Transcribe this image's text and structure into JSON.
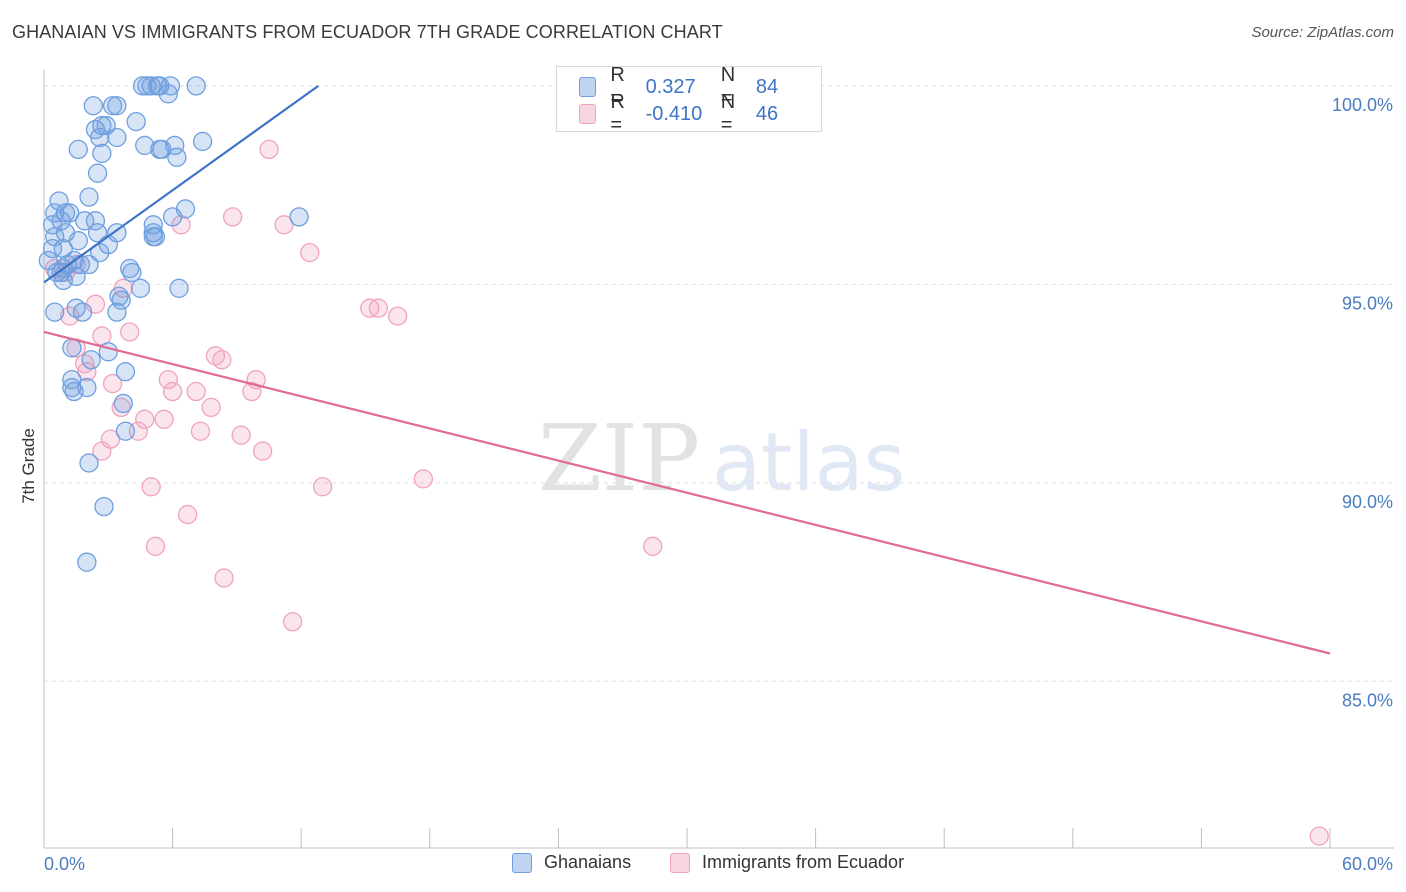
{
  "header": {
    "title": "GHANAIAN VS IMMIGRANTS FROM ECUADOR 7TH GRADE CORRELATION CHART",
    "source": "Source: ZipAtlas.com"
  },
  "watermark": {
    "zip": "ZIP",
    "atlas": "atlas"
  },
  "legend": {
    "rows": [
      {
        "r_label": "R =",
        "r_value": "0.327",
        "n_label": "N =",
        "n_value": "84",
        "color": "#6e9fe0"
      },
      {
        "r_label": "R =",
        "r_value": "-0.410",
        "n_label": "N =",
        "n_value": "46",
        "color": "#f0a3bd"
      }
    ]
  },
  "bottom_legend": [
    {
      "label": "Ghanaians",
      "color": "#6e9fe0"
    },
    {
      "label": "Immigrants from Ecuador",
      "color": "#f0a3bd"
    }
  ],
  "chart_data": {
    "type": "scatter",
    "title": "GHANAIAN VS IMMIGRANTS FROM ECUADOR 7TH GRADE CORRELATION CHART",
    "xlabel": "",
    "ylabel": "7th Grade",
    "xlim": [
      0,
      60
    ],
    "ylim": [
      80.8,
      100.4
    ],
    "x_tick_labels": [
      "0.0%",
      "60.0%"
    ],
    "y_ticks": [
      85.0,
      90.0,
      95.0,
      100.0
    ],
    "y_tick_labels": [
      "85.0%",
      "90.0%",
      "95.0%",
      "100.0%"
    ],
    "grid": true,
    "series": [
      {
        "name": "Ghanaians",
        "color": "#6e9fe0",
        "trend": {
          "x": [
            0.0,
            12.8
          ],
          "y": [
            95.05,
            100.0
          ]
        },
        "points": [
          [
            5.0,
            100.0
          ],
          [
            5.4,
            100.0
          ],
          [
            4.6,
            100.0
          ],
          [
            4.8,
            100.0
          ],
          [
            7.1,
            100.0
          ],
          [
            5.9,
            100.0
          ],
          [
            5.3,
            100.0
          ],
          [
            5.8,
            99.8
          ],
          [
            3.4,
            99.5
          ],
          [
            3.2,
            99.5
          ],
          [
            2.3,
            99.5
          ],
          [
            4.3,
            99.1
          ],
          [
            2.7,
            99.0
          ],
          [
            2.4,
            98.9
          ],
          [
            2.6,
            98.7
          ],
          [
            3.4,
            98.7
          ],
          [
            4.7,
            98.5
          ],
          [
            6.1,
            98.5
          ],
          [
            7.4,
            98.6
          ],
          [
            5.4,
            98.4
          ],
          [
            5.5,
            98.4
          ],
          [
            1.6,
            98.4
          ],
          [
            2.7,
            98.3
          ],
          [
            6.2,
            98.2
          ],
          [
            2.5,
            97.8
          ],
          [
            2.1,
            97.2
          ],
          [
            0.7,
            97.1
          ],
          [
            6.6,
            96.9
          ],
          [
            11.9,
            96.7
          ],
          [
            0.5,
            96.8
          ],
          [
            1.0,
            96.8
          ],
          [
            1.2,
            96.8
          ],
          [
            6.0,
            96.7
          ],
          [
            2.4,
            96.6
          ],
          [
            0.4,
            96.5
          ],
          [
            0.8,
            96.6
          ],
          [
            5.1,
            96.5
          ],
          [
            5.1,
            96.3
          ],
          [
            2.5,
            96.3
          ],
          [
            3.4,
            96.3
          ],
          [
            1.0,
            96.3
          ],
          [
            5.1,
            96.2
          ],
          [
            5.2,
            96.2
          ],
          [
            0.5,
            96.2
          ],
          [
            1.6,
            96.1
          ],
          [
            3.0,
            96.0
          ],
          [
            0.4,
            95.9
          ],
          [
            0.9,
            95.9
          ],
          [
            2.6,
            95.8
          ],
          [
            0.2,
            95.6
          ],
          [
            1.1,
            95.5
          ],
          [
            0.8,
            95.3
          ],
          [
            0.9,
            95.4
          ],
          [
            2.1,
            95.5
          ],
          [
            1.7,
            95.5
          ],
          [
            4.0,
            95.4
          ],
          [
            4.1,
            95.3
          ],
          [
            1.5,
            95.2
          ],
          [
            0.9,
            95.1
          ],
          [
            4.5,
            94.9
          ],
          [
            6.3,
            94.9
          ],
          [
            3.5,
            94.7
          ],
          [
            0.5,
            94.3
          ],
          [
            1.5,
            94.4
          ],
          [
            1.8,
            94.3
          ],
          [
            3.4,
            94.3
          ],
          [
            3.0,
            93.3
          ],
          [
            2.2,
            93.1
          ],
          [
            3.8,
            92.8
          ],
          [
            1.3,
            92.6
          ],
          [
            2.0,
            92.4
          ],
          [
            1.3,
            92.4
          ],
          [
            1.4,
            92.3
          ],
          [
            3.7,
            92.0
          ],
          [
            3.8,
            91.3
          ],
          [
            2.1,
            90.5
          ],
          [
            2.8,
            89.4
          ],
          [
            2.0,
            88.0
          ],
          [
            1.4,
            95.6
          ],
          [
            0.6,
            95.3
          ],
          [
            3.6,
            94.6
          ],
          [
            2.9,
            99.0
          ],
          [
            1.9,
            96.6
          ],
          [
            1.3,
            93.4
          ]
        ]
      },
      {
        "name": "Immigrants from Ecuador",
        "color": "#f0a3bd",
        "trend": {
          "x": [
            0.0,
            60.0
          ],
          "y": [
            93.8,
            85.7
          ]
        },
        "points": [
          [
            10.5,
            98.4
          ],
          [
            8.8,
            96.7
          ],
          [
            6.4,
            96.5
          ],
          [
            11.2,
            96.5
          ],
          [
            12.4,
            95.8
          ],
          [
            0.5,
            95.4
          ],
          [
            1.0,
            95.3
          ],
          [
            3.7,
            94.9
          ],
          [
            2.4,
            94.5
          ],
          [
            1.2,
            94.2
          ],
          [
            15.2,
            94.4
          ],
          [
            15.6,
            94.4
          ],
          [
            16.5,
            94.2
          ],
          [
            4.0,
            93.8
          ],
          [
            1.5,
            93.4
          ],
          [
            8.0,
            93.2
          ],
          [
            8.3,
            93.1
          ],
          [
            1.9,
            93.0
          ],
          [
            2.0,
            92.8
          ],
          [
            5.8,
            92.6
          ],
          [
            9.9,
            92.6
          ],
          [
            3.2,
            92.5
          ],
          [
            6.0,
            92.3
          ],
          [
            7.1,
            92.3
          ],
          [
            9.7,
            92.3
          ],
          [
            3.6,
            91.9
          ],
          [
            7.8,
            91.9
          ],
          [
            4.7,
            91.6
          ],
          [
            5.6,
            91.6
          ],
          [
            4.4,
            91.3
          ],
          [
            7.3,
            91.3
          ],
          [
            9.2,
            91.2
          ],
          [
            3.1,
            91.1
          ],
          [
            2.7,
            90.8
          ],
          [
            10.2,
            90.8
          ],
          [
            5.0,
            89.9
          ],
          [
            13.0,
            89.9
          ],
          [
            17.7,
            90.1
          ],
          [
            6.7,
            89.2
          ],
          [
            5.2,
            88.4
          ],
          [
            28.4,
            88.4
          ],
          [
            8.4,
            87.6
          ],
          [
            11.6,
            86.5
          ],
          [
            59.5,
            81.1
          ],
          [
            1.5,
            95.5
          ],
          [
            2.7,
            93.7
          ]
        ]
      }
    ]
  }
}
